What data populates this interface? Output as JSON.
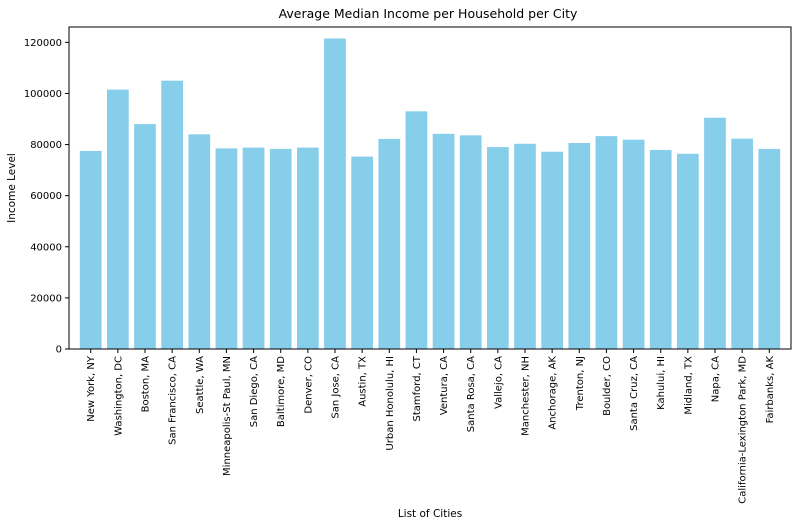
{
  "chart_data": {
    "type": "bar",
    "title": "Average Median Income per Household per City",
    "xlabel": "List of Cities",
    "ylabel": "Income Level",
    "ylim": [
      0,
      126000
    ],
    "yticks": [
      0,
      20000,
      40000,
      60000,
      80000,
      100000,
      120000
    ],
    "bar_color": "#87ceeb",
    "grid": false,
    "categories": [
      "New York, NY",
      "Washington, DC",
      "Boston, MA",
      "San Francisco, CA",
      "Seattle, WA",
      "Minneapolis-St Paul, MN",
      "San Diego, CA",
      "Baltimore, MD",
      "Denver, CO",
      "San Jose, CA",
      "Austin, TX",
      "Urban Honolulu, HI",
      "Stamford, CT",
      "Ventura, CA",
      "Santa Rosa, CA",
      "Vallejo, CA",
      "Manchester, NH",
      "Anchorage, AK",
      "Trenton, NJ",
      "Boulder, CO",
      "Santa Cruz, CA",
      "Kahului, HI",
      "Midland, TX",
      "Napa, CA",
      "California-Lexington Park, MD",
      "Fairbanks, AK"
    ],
    "values": [
      77500,
      101500,
      88000,
      105000,
      84000,
      78500,
      78800,
      78300,
      78800,
      121500,
      75300,
      82200,
      93000,
      84200,
      83600,
      79000,
      80300,
      77200,
      80600,
      83300,
      81900,
      77900,
      76400,
      90500,
      82300,
      78300
    ]
  }
}
